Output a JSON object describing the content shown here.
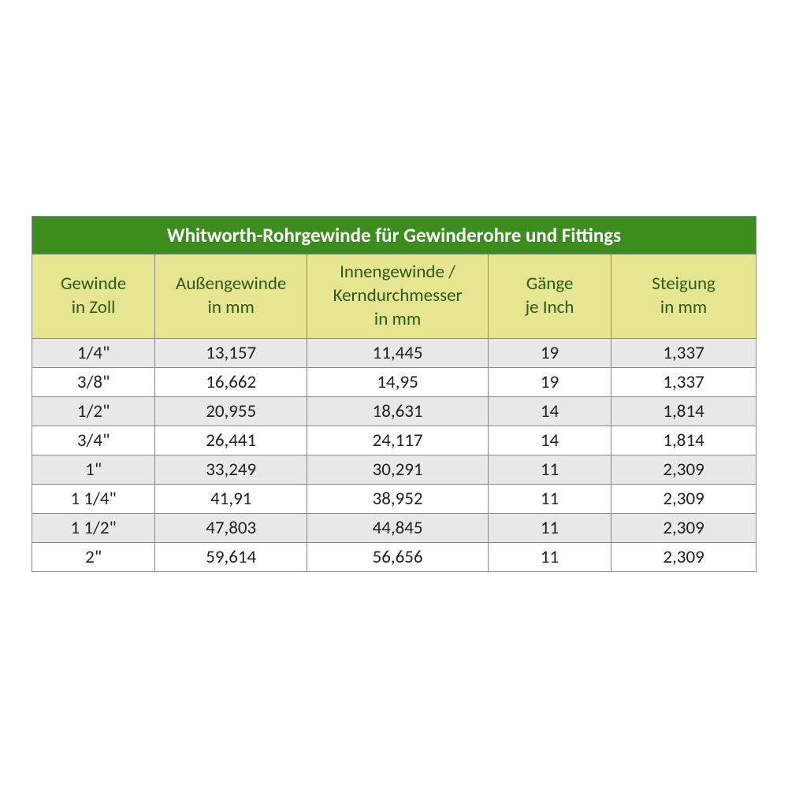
{
  "table": {
    "title": "Whitworth-Rohrgewinde für Gewinderohre und Fittings",
    "title_bg": "#3b8d1e",
    "title_color": "#ffffff",
    "header_bg": "#e6e692",
    "header_color": "#2c5a1a",
    "row_alt_bg": "#e8e8e8",
    "row_bg": "#ffffff",
    "border_color": "#888888",
    "font_size_title": 25,
    "font_size_header": 23,
    "font_size_body": 23,
    "columns": [
      {
        "label": "Gewinde\nin Zoll",
        "width_pct": 17
      },
      {
        "label": "Außengewinde\nin mm",
        "width_pct": 21
      },
      {
        "label": "Innengewinde /\nKerndurchmesser\nin mm",
        "width_pct": 25
      },
      {
        "label": "Gänge\nje Inch",
        "width_pct": 17
      },
      {
        "label": "Steigung\nin mm",
        "width_pct": 20
      }
    ],
    "rows": [
      [
        "1/4\"",
        "13,157",
        "11,445",
        "19",
        "1,337"
      ],
      [
        "3/8\"",
        "16,662",
        "14,95",
        "19",
        "1,337"
      ],
      [
        "1/2\"",
        "20,955",
        "18,631",
        "14",
        "1,814"
      ],
      [
        "3/4\"",
        "26,441",
        "24,117",
        "14",
        "1,814"
      ],
      [
        "1\"",
        "33,249",
        "30,291",
        "11",
        "2,309"
      ],
      [
        "1 1/4\"",
        "41,91",
        "38,952",
        "11",
        "2,309"
      ],
      [
        "1 1/2\"",
        "47,803",
        "44,845",
        "11",
        "2,309"
      ],
      [
        "2\"",
        "59,614",
        "56,656",
        "11",
        "2,309"
      ]
    ]
  }
}
